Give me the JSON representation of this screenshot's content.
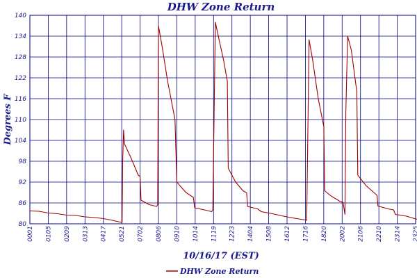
{
  "chart_data": {
    "type": "line",
    "title": "DHW Zone Return",
    "xlabel": "10/16/17 (EST)",
    "ylabel": "Degrees F",
    "ylim": [
      80,
      140
    ],
    "yticks": [
      80,
      86,
      92,
      98,
      104,
      110,
      116,
      122,
      128,
      134,
      140
    ],
    "x_tick_labels": [
      "0001",
      "0105",
      "0209",
      "0313",
      "0417",
      "0521",
      "0702",
      "0806",
      "0910",
      "1014",
      "1119",
      "1223",
      "1404",
      "1508",
      "1612",
      "1716",
      "1820",
      "2002",
      "2106",
      "2210",
      "2314",
      "2325"
    ],
    "grid": true,
    "legend_position": "bottom-left",
    "series": [
      {
        "name": "DHW Zone Return",
        "color": "#a00000",
        "points": [
          [
            0,
            83.7
          ],
          [
            0.5,
            83.6
          ],
          [
            1.0,
            83.1
          ],
          [
            1.5,
            82.9
          ],
          [
            2.0,
            82.5
          ],
          [
            2.5,
            82.4
          ],
          [
            3.0,
            82.0
          ],
          [
            3.5,
            81.8
          ],
          [
            4.0,
            81.5
          ],
          [
            4.5,
            81.0
          ],
          [
            4.9,
            80.5
          ],
          [
            5.0,
            80.4
          ],
          [
            5.02,
            80.4
          ],
          [
            5.05,
            98.0
          ],
          [
            5.1,
            107.0
          ],
          [
            5.15,
            103.0
          ],
          [
            5.5,
            99.0
          ],
          [
            5.9,
            94.0
          ],
          [
            6.0,
            93.6
          ],
          [
            6.05,
            86.8
          ],
          [
            6.5,
            85.5
          ],
          [
            6.9,
            85.0
          ],
          [
            6.96,
            85.5
          ],
          [
            7.0,
            137.0
          ],
          [
            7.2,
            131.0
          ],
          [
            7.5,
            121.0
          ],
          [
            7.9,
            110.0
          ],
          [
            8.0,
            92.0
          ],
          [
            8.5,
            89.0
          ],
          [
            8.9,
            87.6
          ],
          [
            8.97,
            84.6
          ],
          [
            9.5,
            84.0
          ],
          [
            9.9,
            83.5
          ],
          [
            9.96,
            84.0
          ],
          [
            10.1,
            138.0
          ],
          [
            10.3,
            133.0
          ],
          [
            10.55,
            127.0
          ],
          [
            10.75,
            121.0
          ],
          [
            10.8,
            96.0
          ],
          [
            11.2,
            92.0
          ],
          [
            11.6,
            89.5
          ],
          [
            11.8,
            88.9
          ],
          [
            11.85,
            85.0
          ],
          [
            12.4,
            84.3
          ],
          [
            12.6,
            83.5
          ],
          [
            13.2,
            82.9
          ],
          [
            13.8,
            82.2
          ],
          [
            14.4,
            81.6
          ],
          [
            15.0,
            81.1
          ],
          [
            15.07,
            81.0
          ],
          [
            15.2,
            133.0
          ],
          [
            15.4,
            127.0
          ],
          [
            15.7,
            116.0
          ],
          [
            16.0,
            108.0
          ],
          [
            16.05,
            89.5
          ],
          [
            16.4,
            88.0
          ],
          [
            16.9,
            86.4
          ],
          [
            17.05,
            86.2
          ],
          [
            17.15,
            82.7
          ],
          [
            17.2,
            112.0
          ],
          [
            17.3,
            134.0
          ],
          [
            17.5,
            130.0
          ],
          [
            17.8,
            118.0
          ],
          [
            17.85,
            94.0
          ],
          [
            18.3,
            91.0
          ],
          [
            18.9,
            88.2
          ],
          [
            18.95,
            85.1
          ],
          [
            19.5,
            84.3
          ],
          [
            19.8,
            84.0
          ],
          [
            19.9,
            82.7
          ],
          [
            20.5,
            82.2
          ],
          [
            21.0,
            81.4
          ],
          [
            21.5,
            81.0
          ],
          [
            21.9,
            80.4
          ]
        ]
      }
    ]
  }
}
